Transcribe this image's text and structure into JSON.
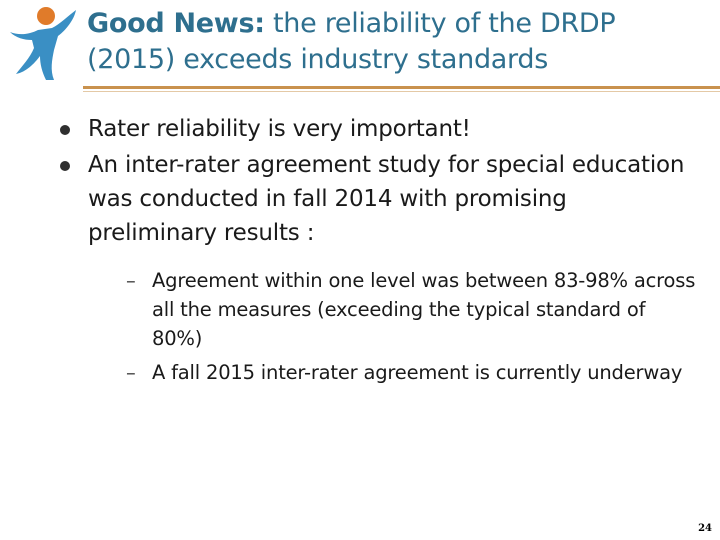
{
  "slide": {
    "title_bold": "Good News:",
    "title_rest_line1": " the reliability of the DRDP",
    "title_line2": "(2015) exceeds industry standards",
    "bullets": [
      "Rater reliability is very important!",
      "An inter-rater agreement study for special education was conducted in fall 2014 with promising preliminary results :"
    ],
    "sub_bullets": [
      "Agreement within one level was between 83-98% across all the measures (exceeding the typical standard of 80%)",
      "A fall 2015 inter-rater agreement is currently underway"
    ],
    "page_number": "24"
  },
  "logo": {
    "icon": "person-figure-logo-icon",
    "head_color": "#e07b2a",
    "body_color": "#3a8fc4"
  },
  "colors": {
    "title": "#2e6f8e",
    "rule": "#c9924e"
  }
}
